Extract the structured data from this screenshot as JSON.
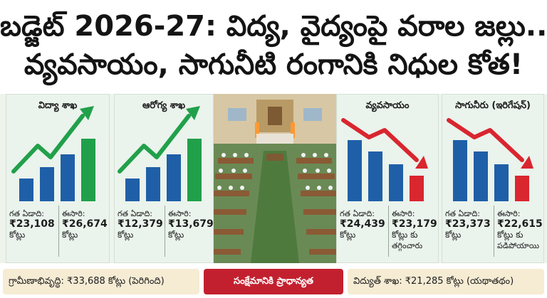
{
  "headline": {
    "line1": "బడ్జెట్ 2026-27: విద్య, వైద్యంపై వరాల జల్లు..",
    "line2": "వ్యవసాయం, సాగునీటి రంగానికి నిధుల కోత!"
  },
  "colors": {
    "up_bar": "#1f5fa8",
    "up_bar_current": "#21a04a",
    "up_arrow": "#21a04a",
    "down_bar": "#1f5fa8",
    "down_bar_current": "#d9262f",
    "down_arrow": "#d9262f"
  },
  "panels": [
    {
      "title": "విద్యా శాఖ",
      "trend": "up",
      "prev_label": "గత ఏడాది:",
      "prev_amount": "₹23,108",
      "prev_unit": "కోట్లు",
      "curr_label": "ఈసారి:",
      "curr_amount": "₹26,674",
      "curr_unit": "కోట్లు",
      "curr_note": ""
    },
    {
      "title": "ఆరోగ్య శాఖ",
      "trend": "up",
      "prev_label": "గత ఏడాది:",
      "prev_amount": "₹12,379",
      "prev_unit": "కోట్లు",
      "curr_label": "ఈసారి:",
      "curr_amount": "₹13,679",
      "curr_unit": "కోట్లు",
      "curr_note": ""
    },
    {
      "title": "వ్యవసాయం",
      "trend": "down",
      "prev_label": "గత ఏడాది:",
      "prev_amount": "₹24,439",
      "prev_unit": "కోట్లు",
      "curr_label": "ఈసారి:",
      "curr_amount": "₹23,179",
      "curr_unit": "కోట్లు కు",
      "curr_note": "తగ్గించారు"
    },
    {
      "title": "సాగునీరు (ఇరిగేషన్)",
      "trend": "down",
      "prev_label": "గత ఏడాది:",
      "prev_amount": "₹23,373",
      "prev_unit": "కోట్లు",
      "curr_label": "ఈసారి:",
      "curr_amount": "₹22,615",
      "curr_unit": "కోట్లు కు",
      "curr_note": "పడిపోయాయి"
    }
  ],
  "footer": {
    "left": "గ్రామీణాభివృద్ధి: ₹33,688 కోట్లు (పెరిగింది)",
    "center": "సంక్షేమానికి ప్రాధాన్యత",
    "right": "విద్యుత్ శాఖ: ₹21,285 కోట్లు (యథాతథం)"
  }
}
